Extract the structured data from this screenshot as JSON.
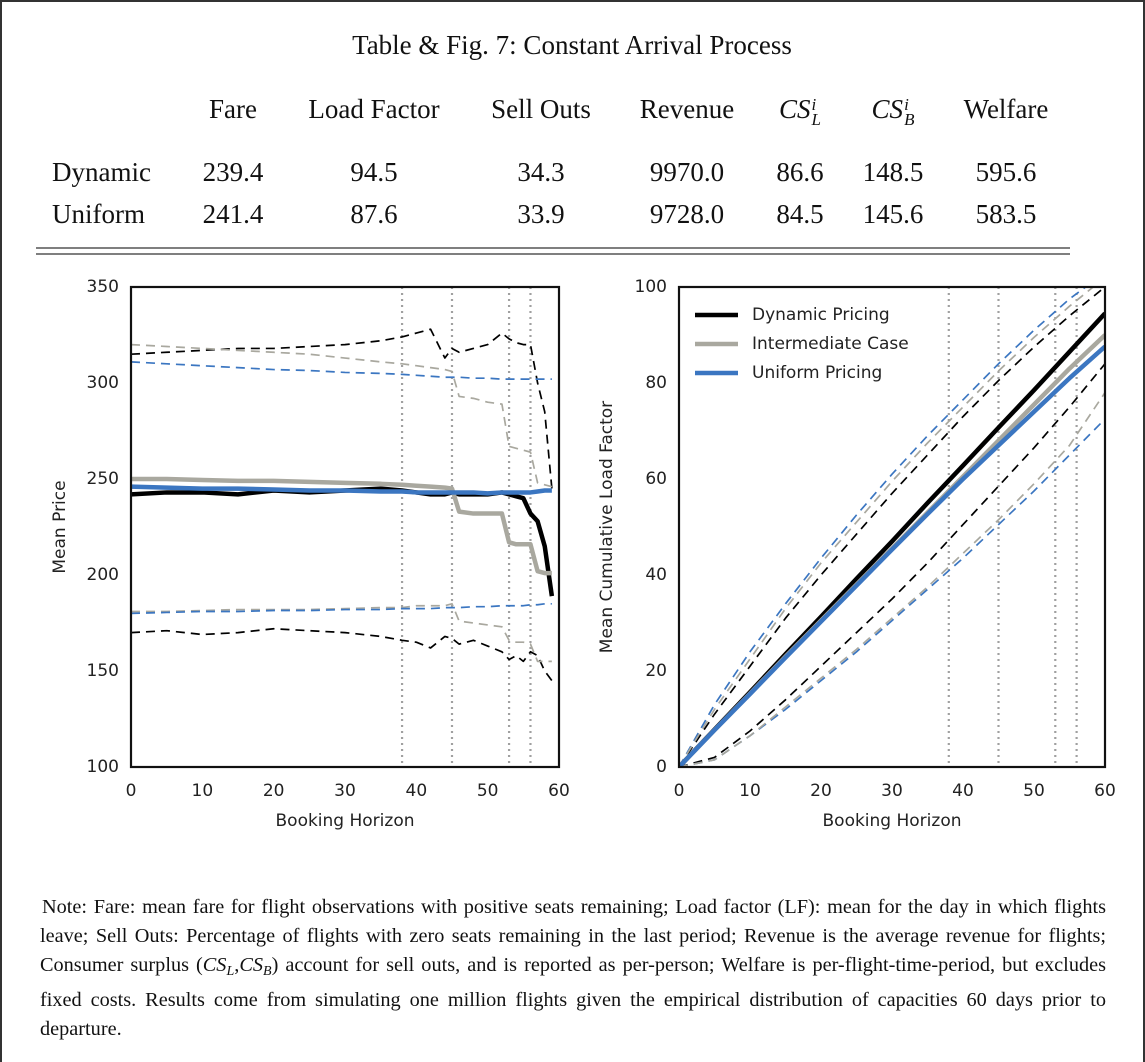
{
  "title": "Table & Fig. 7: Constant Arrival Process",
  "table": {
    "columns": [
      "Fare",
      "Load Factor",
      "Sell Outs",
      "Revenue",
      {
        "base": "CS",
        "sub": "L",
        "sup": "i"
      },
      {
        "base": "CS",
        "sub": "B",
        "sup": "i"
      },
      "Welfare"
    ],
    "rows": [
      {
        "label": "Dynamic",
        "cells": [
          "239.4",
          "94.5",
          "34.3",
          "9970.0",
          "86.6",
          "148.5",
          "595.6"
        ]
      },
      {
        "label": "Uniform",
        "cells": [
          "241.4",
          "87.6",
          "33.9",
          "9728.0",
          "84.5",
          "145.6",
          "583.5"
        ]
      }
    ]
  },
  "chart_data": [
    {
      "type": "line",
      "xlabel": "Booking Horizon",
      "ylabel": "Mean Price",
      "x": [
        0,
        5,
        10,
        15,
        20,
        25,
        30,
        35,
        38,
        40,
        42,
        44,
        45,
        46,
        48,
        50,
        52,
        53,
        54,
        55,
        56,
        57,
        58,
        59
      ],
      "xlim": [
        0,
        60
      ],
      "xticks": [
        0,
        10,
        20,
        30,
        40,
        50,
        60
      ],
      "ylim": [
        100,
        350
      ],
      "yticks": [
        100,
        150,
        200,
        250,
        300,
        350
      ],
      "vlines": [
        38,
        45,
        53,
        56
      ],
      "vline_color": "#a0a0a0",
      "series": [
        {
          "color": "#000000",
          "style": "dashed",
          "values": [
            315,
            316,
            317,
            318,
            318,
            319,
            320,
            322,
            324,
            326,
            328,
            313,
            318,
            316,
            318,
            320,
            326,
            323,
            321,
            320,
            320,
            300,
            285,
            245
          ]
        },
        {
          "color": "#000000",
          "style": "dashed",
          "values": [
            170,
            171,
            169,
            170,
            172,
            171,
            170,
            168,
            166,
            165,
            162,
            168,
            167,
            164,
            166,
            163,
            160,
            156,
            158,
            155,
            160,
            158,
            150,
            145
          ]
        },
        {
          "color": "#a9a89f",
          "style": "dashed",
          "values": [
            320,
            319,
            318,
            317,
            316,
            315,
            313,
            311,
            310,
            309,
            308,
            307,
            306,
            293,
            292,
            290,
            289,
            267,
            266,
            265,
            264,
            248,
            247,
            246
          ]
        },
        {
          "color": "#a9a89f",
          "style": "dashed",
          "values": [
            181,
            181,
            181.5,
            182,
            182,
            182,
            182.5,
            183,
            183,
            184,
            184,
            184,
            185,
            176,
            175,
            174,
            173,
            166,
            165,
            165,
            164,
            155,
            155,
            155
          ]
        },
        {
          "color": "#3b76c1",
          "style": "dashed",
          "values": [
            311,
            310,
            309,
            308,
            307,
            306.5,
            305.5,
            305,
            304.5,
            304,
            303.5,
            303,
            303,
            303,
            302.5,
            302.5,
            302,
            302,
            302,
            302,
            302,
            302,
            302,
            302
          ]
        },
        {
          "color": "#3b76c1",
          "style": "dashed",
          "values": [
            180,
            180.5,
            181,
            181,
            181.5,
            181.5,
            182,
            182,
            182.5,
            182.5,
            182.5,
            183,
            183,
            183,
            183.5,
            183.5,
            184,
            184,
            184,
            184,
            184.5,
            184.5,
            185,
            185
          ]
        },
        {
          "color": "#000000",
          "style": "solid",
          "values": [
            242,
            243,
            243,
            242,
            244,
            243,
            244,
            245,
            244,
            243,
            242,
            242,
            243,
            242,
            242,
            242,
            243,
            242,
            241,
            240,
            232,
            228,
            215,
            189
          ]
        },
        {
          "color": "#a9a89f",
          "style": "solid",
          "values": [
            250,
            250,
            249.5,
            249,
            249,
            248.5,
            248,
            247.5,
            247,
            246.5,
            246,
            245.5,
            245,
            233,
            232,
            232,
            232,
            217,
            216,
            216,
            216,
            202,
            201,
            201
          ]
        },
        {
          "color": "#3b76c1",
          "style": "solid",
          "values": [
            246,
            245.5,
            245,
            245,
            244.5,
            244,
            244,
            243.5,
            243.5,
            243,
            243,
            243,
            243,
            243,
            243,
            242.5,
            243,
            243,
            243,
            243,
            243,
            243.5,
            244,
            244
          ]
        }
      ]
    },
    {
      "type": "line",
      "xlabel": "Booking Horizon",
      "ylabel": "Mean Cumulative Load Factor",
      "x": [
        0,
        5,
        10,
        15,
        20,
        25,
        30,
        35,
        40,
        45,
        50,
        55,
        60
      ],
      "xlim": [
        0,
        60
      ],
      "xticks": [
        0,
        10,
        20,
        30,
        40,
        50,
        60
      ],
      "ylim": [
        0,
        100
      ],
      "yticks": [
        0,
        20,
        40,
        60,
        80,
        100
      ],
      "vlines": [
        38,
        45,
        53,
        56
      ],
      "vline_color": "#a0a0a0",
      "legend": "upper left",
      "series": [
        {
          "color": "#000000",
          "style": "dashed",
          "values": [
            0,
            11,
            21,
            31,
            40,
            48.5,
            57,
            65,
            73,
            80.5,
            87.5,
            94,
            100
          ]
        },
        {
          "color": "#3b76c1",
          "style": "dashed",
          "values": [
            0,
            13,
            24,
            34,
            43.5,
            52.5,
            61,
            69,
            76.5,
            84,
            91,
            97.5,
            103
          ]
        },
        {
          "color": "#a9a89f",
          "style": "dashed",
          "values": [
            0,
            12,
            22.5,
            33,
            42.5,
            51,
            59.5,
            67.5,
            75,
            82.5,
            89.5,
            96,
            102
          ]
        },
        {
          "color": "#000000",
          "style": "dashed",
          "values": [
            0,
            2,
            7.5,
            14,
            21,
            28,
            35,
            42.5,
            50.5,
            58.5,
            66.5,
            75,
            84
          ]
        },
        {
          "color": "#3b76c1",
          "style": "dashed",
          "values": [
            0,
            1.5,
            6.5,
            12,
            18,
            24,
            30.5,
            37,
            43.5,
            50.5,
            57.5,
            65,
            72.5
          ]
        },
        {
          "color": "#a9a89f",
          "style": "dashed",
          "values": [
            0,
            1.5,
            6.5,
            12.5,
            18.5,
            24.5,
            31,
            37.5,
            44.5,
            51.5,
            59,
            67,
            78
          ]
        },
        {
          "name": "Dynamic Pricing",
          "color": "#000000",
          "style": "solid",
          "values": [
            0,
            7.8,
            15.6,
            23.5,
            31.3,
            39.2,
            47,
            55,
            62.8,
            70.7,
            78.5,
            86.5,
            94.5
          ]
        },
        {
          "name": "Intermediate Case",
          "color": "#a9a89f",
          "style": "solid",
          "values": [
            0,
            7.7,
            15.3,
            23,
            30.5,
            38,
            45.5,
            53,
            60.5,
            68,
            75.5,
            83,
            90
          ]
        },
        {
          "name": "Uniform Pricing",
          "color": "#3b76c1",
          "style": "solid",
          "values": [
            0,
            7.7,
            15.2,
            22.8,
            30.3,
            37.8,
            45.3,
            52.7,
            60,
            67,
            74,
            81,
            87.6
          ]
        }
      ]
    }
  ],
  "note": {
    "text_1": "Note: Fare: mean fare for flight observations with positive seats remaining; Load factor (LF): mean for the day in which flights leave; Sell Outs: Percentage of flights with zero seats remaining in the last period; Revenue is the average revenue for flights; Consumer surplus (",
    "cs_l": {
      "base": "CS",
      "sub": "L"
    },
    "separator": ",",
    "cs_b": {
      "base": "CS",
      "sub": "B"
    },
    "text_2": ") account for sell outs, and is reported as per-person; Welfare is per-flight-time-period, but excludes fixed costs.  Results come from simulating one million flights given the empirical distribution of capacities 60 days prior to departure."
  }
}
